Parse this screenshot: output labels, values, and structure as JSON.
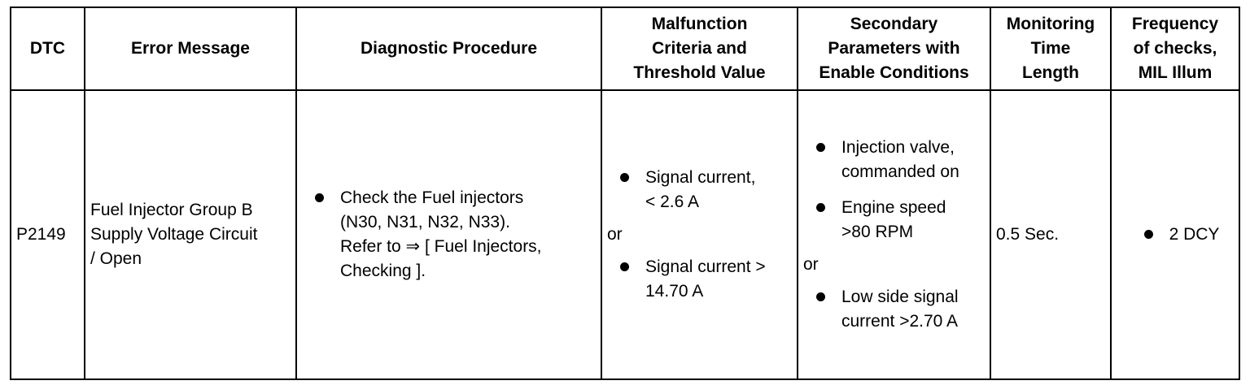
{
  "headers": {
    "dtc": "DTC",
    "error_message": "Error Message",
    "diagnostic_procedure": "Diagnostic Procedure",
    "malfunction_criteria": [
      "Malfunction",
      "Criteria and",
      "Threshold Value"
    ],
    "secondary_parameters": [
      "Secondary",
      "Parameters with",
      "Enable Conditions"
    ],
    "monitoring_time": [
      "Monitoring",
      "Time",
      "Length"
    ],
    "frequency": [
      "Frequency",
      "of checks,",
      "MIL Illum"
    ]
  },
  "row": {
    "dtc": "P2149",
    "error_message": [
      "Fuel Injector Group B",
      "Supply Voltage Circuit",
      "/ Open"
    ],
    "diagnostic_procedure": [
      "Check the Fuel injectors",
      "(N30, N31, N32, N33).",
      "Refer to ⇒ [ Fuel Injectors,",
      "Checking ]."
    ],
    "malfunction_a": [
      "Signal current,",
      "< 2.6 A"
    ],
    "malfunction_or": "or",
    "malfunction_b": [
      "Signal current >",
      "14.70 A"
    ],
    "secondary_1": [
      "Injection valve,",
      "commanded on"
    ],
    "secondary_2": [
      "Engine speed",
      ">80 RPM"
    ],
    "secondary_or": "or",
    "secondary_3": [
      "Low side signal",
      "current >2.70 A"
    ],
    "monitoring_time": "0.5 Sec.",
    "frequency": "2 DCY"
  }
}
